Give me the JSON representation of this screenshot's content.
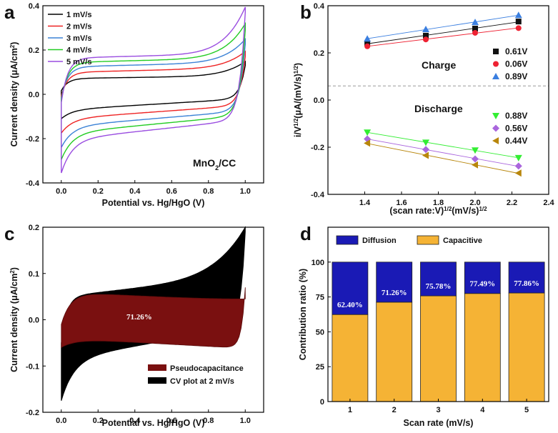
{
  "chart_data": [
    {
      "panel": "a",
      "type": "line",
      "title": "",
      "xlabel": "Potential vs. Hg/HgO (V)",
      "ylabel": "Current density (μA/cm²)",
      "xlim": [
        -0.1,
        1.1
      ],
      "ylim": [
        -0.4,
        0.4
      ],
      "xticks": [
        "0.0",
        "0.2",
        "0.4",
        "0.6",
        "0.8",
        "1.0"
      ],
      "yticks": [
        "-0.4",
        "-0.2",
        "0.0",
        "0.2",
        "0.4"
      ],
      "annotation": "MnO₂/CC",
      "legend_position": "top-left",
      "series": [
        {
          "name": "1 mV/s",
          "color": "#000000",
          "upper_start": 0.02,
          "upper_plateau": 0.075,
          "upper_end": 0.14,
          "lower_start": -0.11,
          "lower_plateau": -0.045,
          "lower_end": 0.13
        },
        {
          "name": "2 mV/s",
          "color": "#ee2222",
          "upper_start": 0.0,
          "upper_plateau": 0.105,
          "upper_end": 0.18,
          "lower_start": -0.17,
          "lower_plateau": -0.08,
          "lower_end": 0.17
        },
        {
          "name": "3 mV/s",
          "color": "#3b82d6",
          "upper_start": -0.01,
          "upper_plateau": 0.13,
          "upper_end": 0.235,
          "lower_start": -0.23,
          "lower_plateau": -0.11,
          "lower_end": 0.225
        },
        {
          "name": "4 mV/s",
          "color": "#22cc22",
          "upper_start": -0.02,
          "upper_plateau": 0.15,
          "upper_end": 0.305,
          "lower_start": -0.28,
          "lower_plateau": -0.135,
          "lower_end": 0.29
        },
        {
          "name": "5 mV/s",
          "color": "#9a4de0",
          "upper_start": -0.03,
          "upper_plateau": 0.17,
          "upper_end": 0.38,
          "lower_start": -0.335,
          "lower_plateau": -0.16,
          "lower_end": 0.37
        }
      ]
    },
    {
      "panel": "b",
      "type": "scatter",
      "title": "",
      "xlabel": "(scan rate:V)^1/2 (mV/s)^1/2",
      "ylabel": "i/V^1/2 (μA/(mV/s)^1/2)",
      "xlim": [
        1.2,
        2.4
      ],
      "ylim": [
        -0.4,
        0.4
      ],
      "xticks": [
        "1.4",
        "1.6",
        "1.8",
        "2.0",
        "2.2",
        "2.4"
      ],
      "yticks": [
        "-0.4",
        "-0.2",
        "0.0",
        "0.2",
        "0.4"
      ],
      "x": [
        1.414,
        1.732,
        2.0,
        2.236
      ],
      "dashed_line_y": 0.06,
      "labels": {
        "charge": "Charge",
        "discharge": "Discharge"
      },
      "series": [
        {
          "name": "0.61V",
          "color": "#111111",
          "marker": "square",
          "values": [
            0.24,
            0.273,
            0.303,
            0.333
          ]
        },
        {
          "name": "0.06V",
          "color": "#ee2233",
          "marker": "circle",
          "values": [
            0.228,
            0.257,
            0.285,
            0.305
          ]
        },
        {
          "name": "0.89V",
          "color": "#3b7fe0",
          "marker": "triangle-up",
          "values": [
            0.26,
            0.3,
            0.33,
            0.36
          ]
        },
        {
          "name": "0.88V",
          "color": "#33ee33",
          "marker": "triangle-down",
          "values": [
            -0.137,
            -0.18,
            -0.213,
            -0.245
          ]
        },
        {
          "name": "0.56V",
          "color": "#aa66dd",
          "marker": "diamond",
          "values": [
            -0.165,
            -0.21,
            -0.25,
            -0.28
          ]
        },
        {
          "name": "0.44V",
          "color": "#b8860b",
          "marker": "triangle-left",
          "values": [
            -0.183,
            -0.235,
            -0.275,
            -0.31
          ]
        }
      ]
    },
    {
      "panel": "c",
      "type": "area",
      "title": "",
      "xlabel": "Potential vs. Hg/HgO (V)",
      "ylabel": "Current density (μA/cm²)",
      "xlim": [
        -0.1,
        1.1
      ],
      "ylim": [
        -0.2,
        0.2
      ],
      "xticks": [
        "0.0",
        "0.2",
        "0.4",
        "0.6",
        "0.8",
        "1.0"
      ],
      "yticks": [
        "-0.2",
        "-0.1",
        "0.0",
        "0.1",
        "0.2"
      ],
      "annotation": "71.26%",
      "legend_position": "bottom-right",
      "series": [
        {
          "name": "Pseudocapacitance",
          "color": "#7a1010"
        },
        {
          "name": "CV plot at 2 mV/s",
          "color": "#000000"
        }
      ]
    },
    {
      "panel": "d",
      "type": "bar",
      "title": "",
      "xlabel": "Scan rate (mV/s)",
      "ylabel": "Contribution ratio (%)",
      "ylim": [
        0,
        125
      ],
      "yticks": [
        "0",
        "25",
        "50",
        "75",
        "100"
      ],
      "categories": [
        "1",
        "2",
        "3",
        "4",
        "5"
      ],
      "legend_position": "top",
      "series": [
        {
          "name": "Capacitive",
          "color": "#f5b335",
          "values": [
            62.4,
            71.26,
            75.78,
            77.49,
            77.86
          ]
        },
        {
          "name": "Diffusion",
          "color": "#1a1ab5",
          "values": [
            37.6,
            28.74,
            24.22,
            22.51,
            22.14
          ]
        }
      ],
      "value_labels": [
        "62.40%",
        "71.26%",
        "75.78%",
        "77.49%",
        "77.86%"
      ]
    }
  ],
  "panels": {
    "a": "a",
    "b": "b",
    "c": "c",
    "d": "d"
  }
}
